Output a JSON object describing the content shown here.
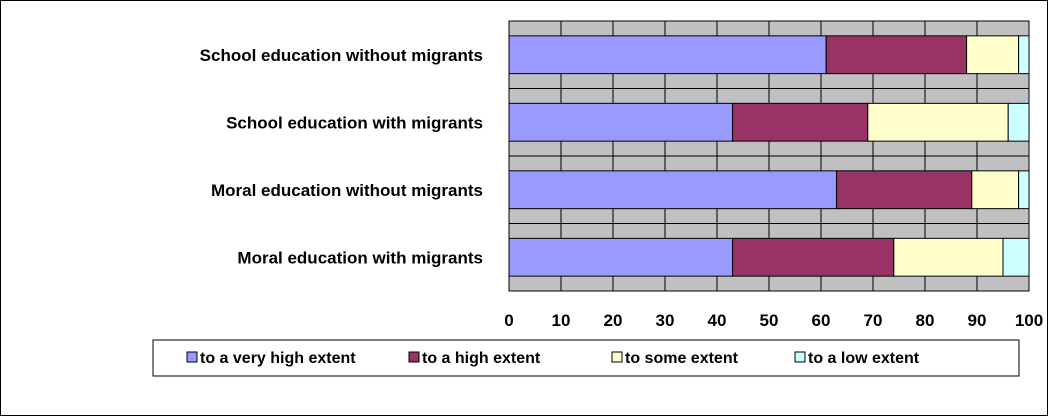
{
  "chart_data": {
    "type": "bar",
    "orientation": "horizontal",
    "stacked": true,
    "categories": [
      "School education without migrants",
      "School education with migrants",
      "Moral education without  migrants",
      "Moral education with  migrants"
    ],
    "series": [
      {
        "name": "to a very high extent",
        "color": "#9999ff",
        "values": [
          61,
          43,
          63,
          43
        ]
      },
      {
        "name": "to a high extent",
        "color": "#993366",
        "values": [
          27,
          26,
          26,
          31
        ]
      },
      {
        "name": "to some extent",
        "color": "#ffffcc",
        "values": [
          10,
          27,
          9,
          21
        ]
      },
      {
        "name": "to a low extent",
        "color": "#ccffff",
        "values": [
          2,
          4,
          2,
          5
        ]
      }
    ],
    "xlim": [
      0,
      100
    ],
    "xticks": [
      "0",
      "10",
      "20",
      "30",
      "40",
      "50",
      "60",
      "70",
      "80",
      "90",
      "100"
    ],
    "grid": true,
    "plot_background": "#c0c0c0",
    "legend_position": "bottom"
  }
}
